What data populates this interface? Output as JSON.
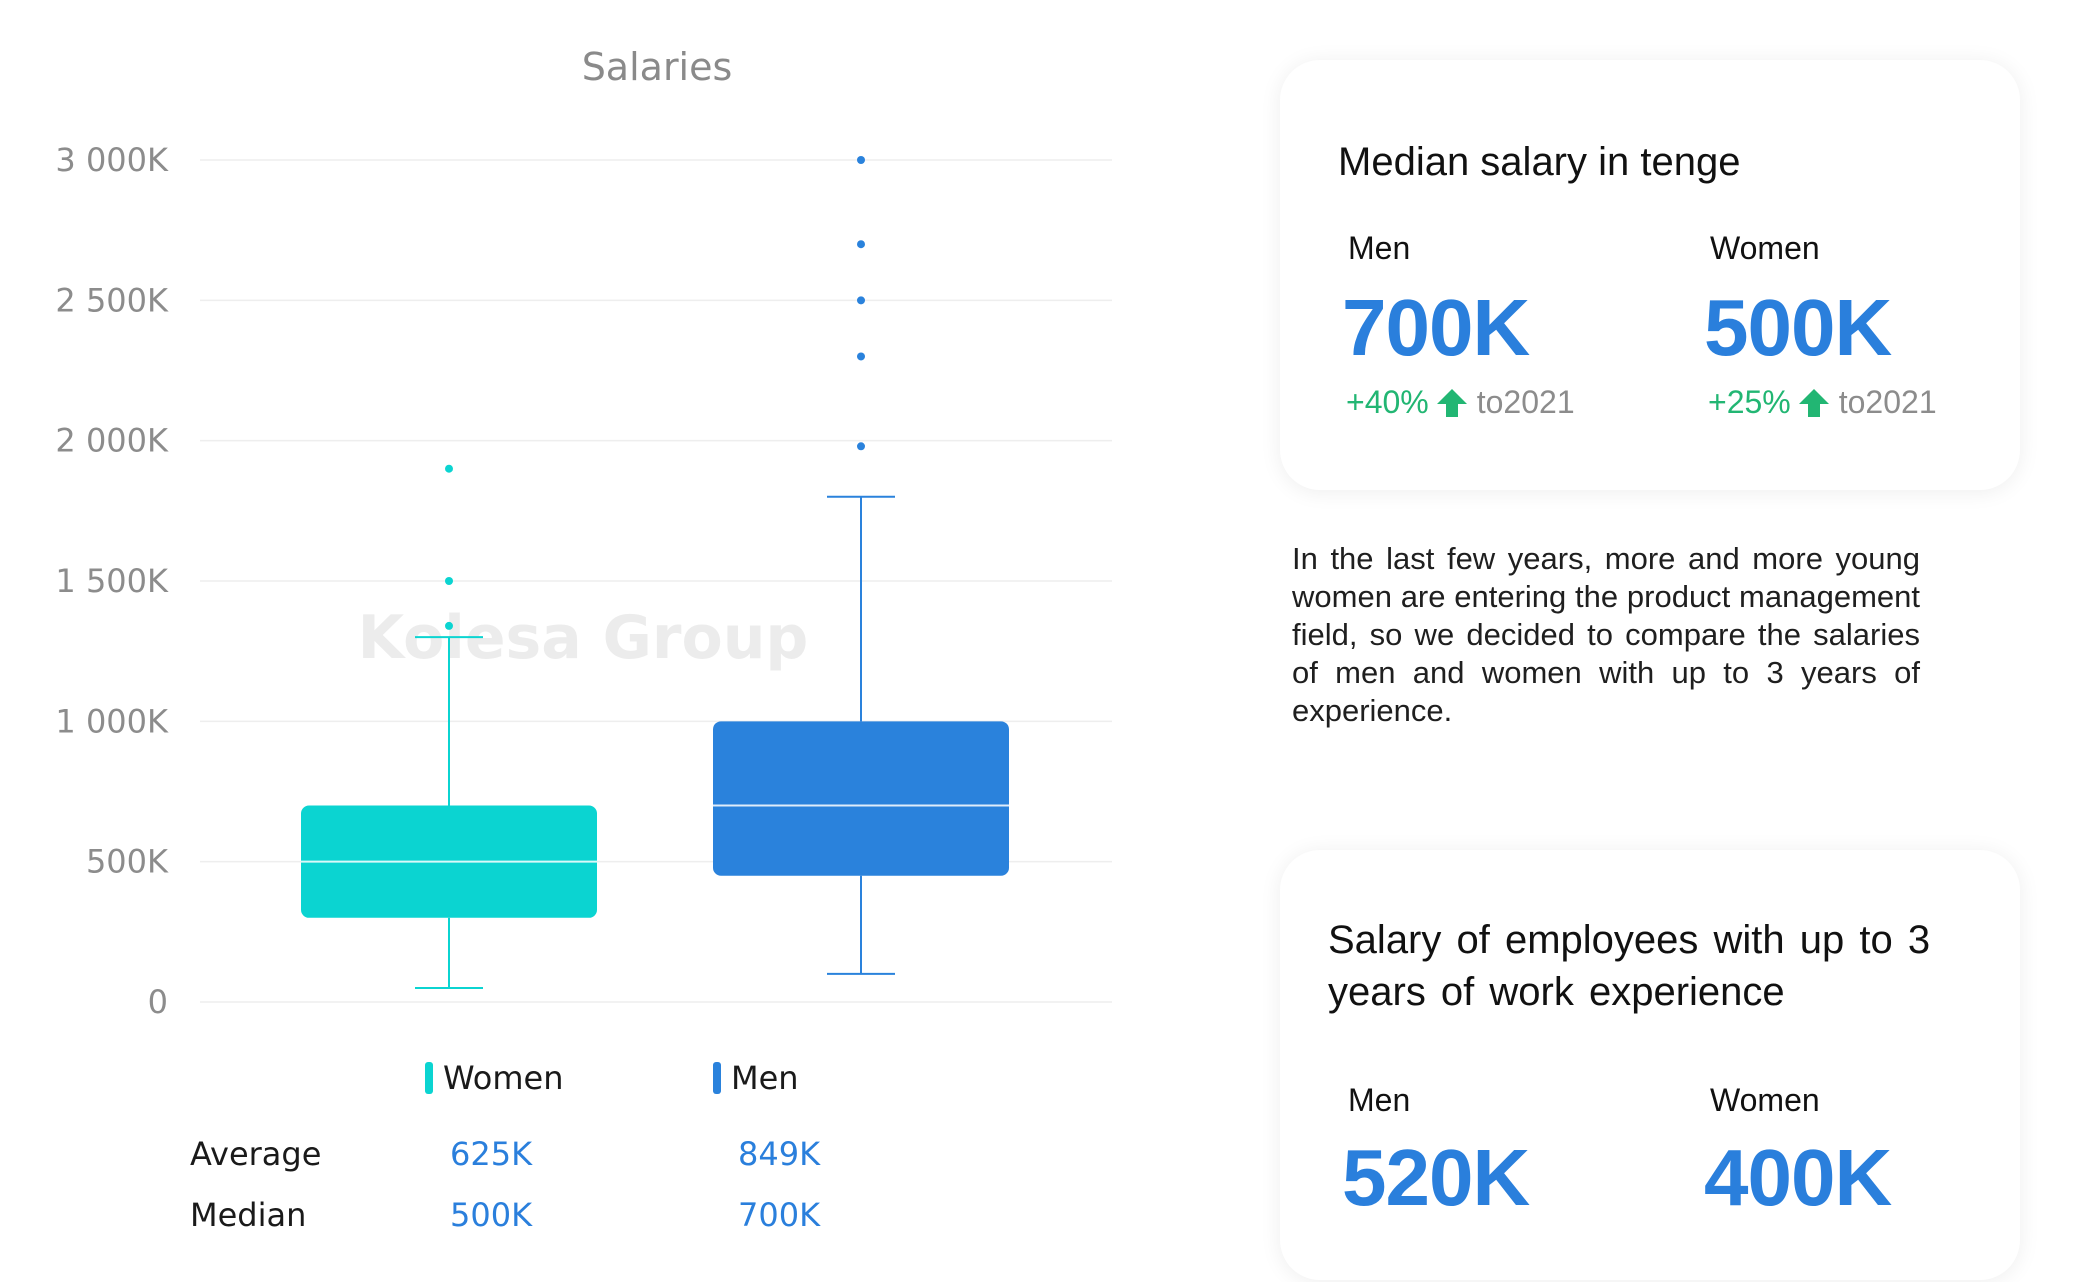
{
  "chart_data": {
    "type": "boxplot",
    "title": "Salaries",
    "ylim": [
      0,
      3000000
    ],
    "yticks": [
      0,
      500000,
      1000000,
      1500000,
      2000000,
      2500000,
      3000000
    ],
    "ytick_labels": [
      "0",
      "500K",
      "1 000K",
      "1 500K",
      "2 000K",
      "2 500K",
      "3 000K"
    ],
    "grid": true,
    "watermark": "Kolesa Group",
    "series": [
      {
        "name": "Women",
        "color": "#0bd4d1",
        "min": 50000,
        "q1": 300000,
        "median": 500000,
        "q3": 700000,
        "max": 1300000,
        "outliers": [
          1340000,
          1500000,
          1900000
        ]
      },
      {
        "name": "Men",
        "color": "#2a82dc",
        "min": 100000,
        "q1": 450000,
        "median": 700000,
        "q3": 1000000,
        "max": 1800000,
        "outliers": [
          1980000,
          2300000,
          2500000,
          2700000,
          3000000
        ]
      }
    ]
  },
  "stats": {
    "rows": [
      {
        "label": "Average",
        "women": "625K",
        "men": "849K"
      },
      {
        "label": "Median",
        "women": "500K",
        "men": "700K"
      }
    ]
  },
  "card_median": {
    "title": "Median salary in tenge",
    "men_label": "Men",
    "women_label": "Women",
    "men_value": "700K",
    "women_value": "500K",
    "men_change": "+40%",
    "women_change": "+25%",
    "compare_text": "to2021"
  },
  "description": "In the last few years, more and more young women are entering the product management field, so we decided to compare the salaries of men and women with up to 3 years of experience.",
  "card_junior": {
    "title": "Salary of employees with up to 3 years of work experience",
    "men_label": "Men",
    "women_label": "Women",
    "men_value": "520K",
    "women_value": "400K"
  },
  "colors": {
    "accent_blue": "#2a7fdc",
    "teal": "#0bd4d1",
    "positive_green": "#22b673"
  }
}
